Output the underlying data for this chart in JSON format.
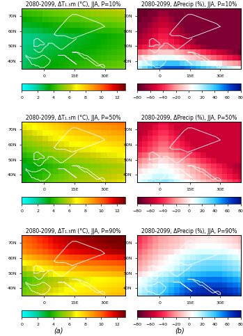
{
  "titles": [
    [
      "2080-2099, ΔT₁.₅m (°C), JJA, P=10%",
      "2080-2099, ΔPrecip (%), JJA, P=10%"
    ],
    [
      "2080-2099, ΔT₁.₅m (°C), JJA, P=50%",
      "2080-2099, ΔPrecip (%), JJA, P=50%"
    ],
    [
      "2080-2099, ΔT₁.₅m (°C), JJA, P=90%",
      "2080-2099, ΔPrecip (%), JJA, P=90%"
    ]
  ],
  "temp_cmap_colors": [
    "#00ffff",
    "#00eedd",
    "#00ddbb",
    "#00cc88",
    "#00bb44",
    "#00aa00",
    "#33bb00",
    "#66cc00",
    "#99cc00",
    "#cccc00",
    "#ffff00",
    "#ffdd00",
    "#ffbb00",
    "#ff9900",
    "#ff7700",
    "#ff5500",
    "#ff2200",
    "#dd0000",
    "#aa0000",
    "#770000"
  ],
  "precip_cmap_colors": [
    "#550022",
    "#770033",
    "#aa0033",
    "#cc0033",
    "#ee1144",
    "#ff3355",
    "#ff6677",
    "#ff9999",
    "#ffbbbb",
    "#ffdddd",
    "#ffffff",
    "#ddffff",
    "#aaeeff",
    "#77ddff",
    "#44ccff",
    "#11aaff",
    "#0077ee",
    "#0044cc",
    "#0022aa",
    "#001188"
  ],
  "temp_clim": [
    0,
    13
  ],
  "precip_clim": [
    -80,
    80
  ],
  "temp_ticks": [
    0,
    2,
    4,
    6,
    8,
    10,
    12
  ],
  "precip_ticks": [
    -80,
    -60,
    -40,
    -20,
    0,
    20,
    40,
    60,
    80
  ],
  "lon_ticks": [
    0,
    15,
    30
  ],
  "lon_labels": [
    "0",
    "15E",
    "30E"
  ],
  "lat_ticks": [
    40,
    50,
    60,
    70
  ],
  "lat_labels": [
    "40N",
    "50N",
    "60N",
    "70N"
  ],
  "lon_range": [
    -11,
    40
  ],
  "lat_range": [
    35,
    75
  ],
  "panel_labels": [
    "(a)",
    "(b)"
  ],
  "background_color": "#ffffff",
  "title_fontsize": 5.5,
  "tick_fontsize": 4.5,
  "colorbar_fontsize": 4.5,
  "panel_label_fontsize": 7,
  "temp_data_10": [
    [
      2.5,
      2.8,
      3.0,
      3.2,
      3.4,
      3.5,
      3.6,
      3.7,
      3.8,
      4.0,
      4.1,
      4.2,
      4.3,
      4.4,
      4.5,
      4.6,
      4.7,
      4.8,
      4.9,
      5.0
    ],
    [
      2.4,
      2.7,
      2.9,
      3.1,
      3.3,
      3.4,
      3.5,
      3.6,
      3.7,
      3.8,
      3.9,
      4.0,
      4.1,
      4.2,
      4.3,
      4.4,
      4.5,
      4.6,
      4.7,
      4.8
    ],
    [
      2.3,
      2.5,
      2.7,
      2.9,
      3.0,
      3.1,
      3.2,
      3.3,
      3.4,
      3.5,
      3.6,
      3.7,
      3.8,
      3.9,
      4.0,
      4.1,
      4.2,
      4.3,
      4.4,
      4.5
    ],
    [
      2.2,
      2.4,
      2.5,
      2.7,
      2.8,
      2.9,
      3.0,
      3.1,
      3.2,
      3.3,
      3.4,
      3.5,
      3.6,
      3.7,
      3.8,
      3.9,
      4.0,
      4.1,
      4.2,
      4.3
    ],
    [
      2.1,
      2.3,
      2.4,
      2.5,
      2.6,
      2.7,
      2.8,
      2.9,
      3.0,
      3.1,
      3.2,
      3.3,
      3.4,
      3.5,
      3.6,
      3.7,
      3.8,
      3.9,
      4.0,
      4.1
    ],
    [
      2.0,
      2.1,
      2.2,
      2.4,
      2.5,
      2.6,
      2.7,
      2.8,
      2.9,
      3.0,
      3.1,
      3.2,
      3.3,
      3.4,
      3.5,
      3.6,
      3.7,
      3.8,
      3.9,
      4.0
    ],
    [
      2.0,
      2.1,
      2.2,
      2.3,
      2.4,
      2.5,
      2.6,
      2.7,
      2.8,
      2.9,
      3.0,
      3.1,
      3.2,
      3.3,
      3.4,
      3.5,
      3.6,
      3.7,
      3.8,
      3.9
    ],
    [
      2.5,
      2.6,
      2.7,
      2.8,
      3.0,
      3.1,
      3.2,
      3.3,
      3.4,
      3.5,
      3.5,
      3.6,
      3.7,
      3.8,
      3.9,
      4.0,
      4.0,
      4.1,
      4.2,
      4.3
    ],
    [
      3.0,
      3.1,
      3.2,
      3.3,
      3.5,
      3.6,
      3.7,
      3.8,
      3.9,
      4.0,
      4.0,
      4.1,
      4.2,
      4.3,
      4.4,
      4.5,
      4.5,
      4.6,
      4.7,
      4.8
    ],
    [
      3.5,
      3.6,
      3.7,
      3.8,
      4.0,
      4.1,
      4.2,
      4.3,
      4.4,
      4.5,
      4.5,
      4.6,
      4.7,
      4.8,
      4.9,
      5.0,
      5.0,
      5.1,
      5.2,
      5.3
    ],
    [
      4.0,
      4.1,
      4.2,
      4.3,
      4.5,
      4.6,
      4.7,
      4.8,
      4.9,
      5.0,
      5.0,
      5.1,
      5.2,
      5.3,
      5.4,
      5.5,
      5.5,
      5.6,
      5.7,
      5.8
    ],
    [
      4.5,
      4.6,
      4.7,
      4.8,
      5.0,
      5.1,
      5.2,
      5.3,
      5.4,
      5.5,
      5.5,
      5.6,
      5.7,
      5.8,
      5.9,
      6.0,
      6.0,
      6.1,
      6.2,
      6.3
    ]
  ],
  "temp_data_50": [
    [
      3.5,
      3.8,
      4.0,
      4.2,
      4.5,
      4.7,
      4.9,
      5.1,
      5.3,
      5.5,
      5.6,
      5.7,
      5.8,
      5.9,
      6.0,
      6.1,
      6.2,
      6.3,
      6.4,
      6.5
    ],
    [
      3.4,
      3.6,
      3.8,
      4.0,
      4.3,
      4.5,
      4.7,
      4.9,
      5.1,
      5.3,
      5.4,
      5.5,
      5.6,
      5.7,
      5.8,
      5.9,
      6.0,
      6.1,
      6.2,
      6.3
    ],
    [
      3.2,
      3.4,
      3.6,
      3.8,
      4.0,
      4.2,
      4.4,
      4.6,
      4.8,
      5.0,
      5.1,
      5.2,
      5.3,
      5.4,
      5.5,
      5.6,
      5.7,
      5.8,
      5.9,
      6.0
    ],
    [
      3.0,
      3.2,
      3.4,
      3.6,
      3.8,
      4.0,
      4.2,
      4.4,
      4.6,
      4.8,
      4.9,
      5.0,
      5.1,
      5.2,
      5.3,
      5.4,
      5.5,
      5.6,
      5.7,
      5.8
    ],
    [
      3.5,
      3.7,
      3.9,
      4.1,
      4.3,
      4.5,
      4.7,
      4.9,
      5.1,
      5.3,
      5.4,
      5.5,
      5.6,
      5.7,
      5.8,
      5.9,
      6.0,
      6.1,
      6.2,
      6.3
    ],
    [
      4.0,
      4.2,
      4.4,
      4.6,
      4.8,
      5.0,
      5.2,
      5.4,
      5.6,
      5.8,
      5.9,
      6.0,
      6.1,
      6.2,
      6.3,
      6.4,
      6.5,
      6.6,
      6.7,
      6.8
    ],
    [
      4.5,
      4.7,
      4.9,
      5.1,
      5.3,
      5.5,
      5.7,
      5.9,
      6.1,
      6.3,
      6.4,
      6.5,
      6.6,
      6.7,
      6.8,
      6.9,
      7.0,
      7.1,
      7.2,
      7.3
    ],
    [
      5.0,
      5.2,
      5.4,
      5.6,
      5.8,
      6.0,
      6.2,
      6.4,
      6.6,
      6.8,
      6.9,
      7.0,
      7.1,
      7.2,
      7.3,
      7.4,
      7.5,
      7.6,
      7.7,
      7.8
    ],
    [
      5.5,
      5.7,
      5.9,
      6.1,
      6.3,
      6.5,
      6.7,
      6.9,
      7.1,
      7.3,
      7.4,
      7.5,
      7.6,
      7.7,
      7.8,
      7.9,
      8.0,
      8.1,
      8.2,
      8.3
    ],
    [
      6.0,
      6.2,
      6.4,
      6.6,
      6.8,
      7.0,
      7.2,
      7.4,
      7.6,
      7.8,
      7.9,
      8.0,
      8.1,
      8.2,
      8.3,
      8.4,
      8.5,
      8.6,
      8.7,
      8.8
    ],
    [
      6.5,
      6.7,
      6.9,
      7.1,
      7.3,
      7.5,
      7.7,
      7.9,
      8.1,
      8.3,
      8.4,
      8.5,
      8.6,
      8.7,
      8.8,
      8.9,
      9.0,
      9.1,
      9.2,
      9.3
    ],
    [
      7.0,
      7.2,
      7.4,
      7.6,
      7.8,
      8.0,
      8.2,
      8.4,
      8.6,
      8.8,
      8.9,
      9.0,
      9.1,
      9.2,
      9.3,
      9.4,
      9.5,
      9.6,
      9.7,
      9.8
    ]
  ],
  "temp_data_90": [
    [
      5.0,
      5.3,
      5.6,
      6.0,
      6.3,
      6.5,
      6.7,
      6.9,
      7.1,
      7.3,
      7.4,
      7.5,
      7.6,
      7.7,
      7.8,
      7.9,
      8.0,
      8.1,
      8.2,
      8.3
    ],
    [
      4.8,
      5.1,
      5.4,
      5.7,
      6.0,
      6.2,
      6.4,
      6.6,
      6.8,
      7.0,
      7.1,
      7.2,
      7.3,
      7.4,
      7.5,
      7.6,
      7.7,
      7.8,
      7.9,
      8.0
    ],
    [
      4.5,
      4.8,
      5.1,
      5.4,
      5.7,
      5.9,
      6.1,
      6.3,
      6.5,
      6.7,
      6.8,
      6.9,
      7.0,
      7.1,
      7.2,
      7.3,
      7.4,
      7.5,
      7.6,
      7.7
    ],
    [
      4.2,
      4.5,
      4.8,
      5.1,
      5.4,
      5.6,
      5.8,
      6.0,
      6.2,
      6.4,
      6.5,
      6.6,
      6.7,
      6.8,
      6.9,
      7.0,
      7.1,
      7.2,
      7.3,
      7.4
    ],
    [
      5.0,
      5.3,
      5.6,
      5.9,
      6.2,
      6.5,
      6.8,
      7.0,
      7.2,
      7.4,
      7.5,
      7.6,
      7.7,
      7.8,
      7.9,
      8.0,
      8.1,
      8.2,
      8.3,
      8.4
    ],
    [
      6.0,
      6.3,
      6.6,
      6.9,
      7.2,
      7.5,
      7.8,
      8.0,
      8.2,
      8.4,
      8.5,
      8.6,
      8.7,
      8.8,
      8.9,
      9.0,
      9.1,
      9.2,
      9.3,
      9.4
    ],
    [
      7.0,
      7.3,
      7.6,
      7.9,
      8.2,
      8.5,
      8.8,
      9.0,
      9.2,
      9.4,
      9.5,
      9.6,
      9.7,
      9.8,
      9.9,
      10.0,
      10.1,
      10.2,
      10.3,
      10.4
    ],
    [
      8.0,
      8.3,
      8.6,
      8.9,
      9.2,
      9.5,
      9.8,
      10.0,
      10.2,
      10.4,
      10.5,
      10.6,
      10.7,
      10.8,
      10.9,
      11.0,
      11.1,
      11.2,
      11.3,
      11.4
    ],
    [
      9.0,
      9.3,
      9.6,
      9.9,
      10.2,
      10.5,
      10.8,
      11.0,
      11.2,
      11.4,
      11.5,
      11.6,
      11.7,
      11.8,
      11.9,
      12.0,
      12.1,
      12.2,
      12.3,
      12.4
    ],
    [
      9.5,
      9.8,
      10.1,
      10.4,
      10.7,
      11.0,
      11.3,
      11.5,
      11.7,
      11.9,
      12.0,
      12.1,
      12.2,
      12.3,
      12.4,
      12.5,
      12.6,
      12.7,
      12.8,
      12.9
    ],
    [
      9.8,
      10.1,
      10.4,
      10.7,
      11.0,
      11.3,
      11.6,
      11.8,
      12.0,
      12.2,
      12.3,
      12.4,
      12.5,
      12.6,
      12.7,
      12.8,
      12.9,
      13.0,
      13.0,
      13.0
    ],
    [
      10.0,
      10.3,
      10.6,
      10.9,
      11.2,
      11.5,
      11.8,
      12.0,
      12.2,
      12.4,
      12.5,
      12.6,
      12.7,
      12.8,
      12.9,
      13.0,
      13.0,
      13.0,
      13.0,
      13.0
    ]
  ],
  "precip_data_10": [
    [
      20,
      30,
      40,
      50,
      55,
      60,
      60,
      60,
      60,
      55,
      50,
      45,
      40,
      35,
      30,
      25,
      20,
      15,
      10,
      5
    ],
    [
      10,
      15,
      20,
      30,
      35,
      40,
      40,
      40,
      35,
      30,
      25,
      20,
      15,
      10,
      5,
      0,
      -10,
      -15,
      -20,
      -25
    ],
    [
      -10,
      -5,
      0,
      5,
      10,
      10,
      10,
      5,
      0,
      -5,
      -10,
      -15,
      -20,
      -25,
      -30,
      -35,
      -40,
      -45,
      -50,
      -55
    ],
    [
      -30,
      -25,
      -20,
      -15,
      -10,
      -10,
      -10,
      -15,
      -20,
      -25,
      -30,
      -35,
      -40,
      -45,
      -50,
      -55,
      -60,
      -65,
      -70,
      -75
    ],
    [
      -50,
      -45,
      -40,
      -35,
      -30,
      -30,
      -35,
      -40,
      -45,
      -50,
      -55,
      -60,
      -65,
      -70,
      -70,
      -70,
      -70,
      -70,
      -70,
      -70
    ],
    [
      -60,
      -55,
      -50,
      -45,
      -40,
      -40,
      -45,
      -50,
      -55,
      -60,
      -65,
      -70,
      -70,
      -70,
      -70,
      -70,
      -70,
      -70,
      -70,
      -70
    ],
    [
      -65,
      -60,
      -55,
      -50,
      -45,
      -45,
      -50,
      -55,
      -60,
      -65,
      -70,
      -70,
      -70,
      -70,
      -70,
      -70,
      -70,
      -70,
      -70,
      -70
    ],
    [
      -70,
      -65,
      -60,
      -55,
      -50,
      -50,
      -55,
      -60,
      -65,
      -70,
      -70,
      -70,
      -70,
      -70,
      -70,
      -70,
      -70,
      -70,
      -70,
      -70
    ],
    [
      -70,
      -70,
      -65,
      -60,
      -55,
      -55,
      -60,
      -65,
      -70,
      -70,
      -70,
      -70,
      -70,
      -70,
      -70,
      -70,
      -70,
      -70,
      -70,
      -70
    ],
    [
      -75,
      -70,
      -70,
      -65,
      -60,
      -60,
      -65,
      -70,
      -70,
      -70,
      -70,
      -70,
      -70,
      -70,
      -70,
      -70,
      -70,
      -70,
      -70,
      -70
    ],
    [
      -75,
      -75,
      -70,
      -70,
      -65,
      -65,
      -70,
      -70,
      -70,
      -70,
      -70,
      -70,
      -70,
      -70,
      -70,
      -70,
      -70,
      -70,
      -70,
      -70
    ],
    [
      -75,
      -75,
      -75,
      -70,
      -70,
      -70,
      -70,
      -70,
      -70,
      -70,
      -70,
      -70,
      -70,
      -70,
      -70,
      -70,
      -70,
      -70,
      -70,
      -70
    ]
  ],
  "precip_data_50": [
    [
      10,
      15,
      20,
      25,
      25,
      25,
      20,
      15,
      10,
      5,
      0,
      -5,
      -10,
      -15,
      -20,
      -25,
      -30,
      -35,
      -40,
      -45
    ],
    [
      5,
      8,
      10,
      15,
      15,
      15,
      10,
      5,
      0,
      -5,
      -10,
      -15,
      -20,
      -25,
      -30,
      -35,
      -40,
      -45,
      -50,
      -55
    ],
    [
      -5,
      0,
      5,
      8,
      10,
      8,
      5,
      0,
      -5,
      -10,
      -15,
      -20,
      -25,
      -30,
      -35,
      -40,
      -45,
      -50,
      -55,
      -60
    ],
    [
      -15,
      -10,
      -5,
      0,
      5,
      3,
      0,
      -5,
      -10,
      -15,
      -20,
      -25,
      -30,
      -35,
      -40,
      -45,
      -50,
      -55,
      -60,
      -65
    ],
    [
      -25,
      -20,
      -15,
      -10,
      -5,
      -5,
      -10,
      -15,
      -20,
      -25,
      -30,
      -35,
      -40,
      -45,
      -50,
      -55,
      -55,
      -55,
      -55,
      -55
    ],
    [
      -35,
      -30,
      -25,
      -20,
      -15,
      -15,
      -20,
      -25,
      -30,
      -35,
      -40,
      -45,
      -50,
      -55,
      -55,
      -55,
      -55,
      -55,
      -55,
      -55
    ],
    [
      -45,
      -40,
      -35,
      -30,
      -25,
      -25,
      -30,
      -35,
      -40,
      -45,
      -50,
      -55,
      -55,
      -55,
      -55,
      -55,
      -55,
      -55,
      -55,
      -55
    ],
    [
      -50,
      -45,
      -40,
      -35,
      -30,
      -30,
      -35,
      -40,
      -45,
      -50,
      -55,
      -55,
      -55,
      -55,
      -55,
      -55,
      -55,
      -55,
      -55,
      -55
    ],
    [
      -55,
      -50,
      -45,
      -40,
      -35,
      -35,
      -40,
      -45,
      -50,
      -55,
      -55,
      -55,
      -55,
      -55,
      -55,
      -55,
      -55,
      -55,
      -55,
      -55
    ],
    [
      -60,
      -55,
      -50,
      -45,
      -40,
      -40,
      -45,
      -50,
      -55,
      -55,
      -55,
      -55,
      -55,
      -55,
      -55,
      -55,
      -55,
      -55,
      -55,
      -55
    ],
    [
      -60,
      -58,
      -55,
      -50,
      -45,
      -45,
      -50,
      -55,
      -55,
      -55,
      -55,
      -55,
      -55,
      -55,
      -55,
      -55,
      -55,
      -55,
      -55,
      -55
    ],
    [
      -60,
      -60,
      -58,
      -55,
      -50,
      -50,
      -55,
      -55,
      -55,
      -55,
      -55,
      -55,
      -55,
      -55,
      -55,
      -55,
      -55,
      -55,
      -55,
      -55
    ]
  ],
  "precip_data_90": [
    [
      20,
      25,
      30,
      35,
      40,
      45,
      50,
      55,
      60,
      65,
      70,
      72,
      74,
      75,
      75,
      75,
      73,
      70,
      67,
      63
    ],
    [
      15,
      20,
      25,
      30,
      35,
      40,
      45,
      50,
      55,
      60,
      65,
      67,
      69,
      70,
      70,
      70,
      68,
      65,
      62,
      58
    ],
    [
      10,
      15,
      20,
      25,
      30,
      35,
      40,
      45,
      50,
      55,
      58,
      60,
      62,
      63,
      63,
      63,
      61,
      58,
      55,
      51
    ],
    [
      5,
      10,
      15,
      20,
      25,
      28,
      32,
      37,
      42,
      47,
      50,
      52,
      54,
      55,
      55,
      55,
      53,
      50,
      47,
      43
    ],
    [
      -5,
      0,
      5,
      10,
      15,
      18,
      22,
      27,
      32,
      37,
      40,
      42,
      44,
      45,
      45,
      45,
      43,
      40,
      37,
      33
    ],
    [
      -15,
      -10,
      -5,
      0,
      5,
      8,
      12,
      17,
      22,
      27,
      30,
      32,
      34,
      35,
      35,
      35,
      33,
      30,
      27,
      23
    ],
    [
      -20,
      -15,
      -10,
      -5,
      0,
      3,
      7,
      12,
      17,
      22,
      25,
      27,
      29,
      30,
      30,
      30,
      28,
      25,
      22,
      18
    ],
    [
      -25,
      -20,
      -15,
      -10,
      -5,
      0,
      5,
      8,
      12,
      16,
      18,
      20,
      22,
      22,
      22,
      22,
      20,
      17,
      14,
      10
    ],
    [
      -30,
      -25,
      -20,
      -15,
      -10,
      -8,
      -5,
      0,
      5,
      8,
      10,
      12,
      13,
      13,
      13,
      13,
      11,
      8,
      5,
      1
    ],
    [
      -35,
      -30,
      -25,
      -20,
      -15,
      -13,
      -10,
      -8,
      -5,
      0,
      2,
      4,
      5,
      5,
      5,
      4,
      2,
      0,
      -3,
      -7
    ],
    [
      -38,
      -33,
      -28,
      -23,
      -18,
      -16,
      -13,
      -11,
      -8,
      -5,
      -3,
      -1,
      0,
      0,
      0,
      -1,
      -3,
      -5,
      -8,
      -12
    ],
    [
      -40,
      -35,
      -30,
      -25,
      -20,
      -18,
      -15,
      -13,
      -10,
      -8,
      -6,
      -4,
      -3,
      -3,
      -3,
      -4,
      -6,
      -8,
      -11,
      -15
    ]
  ]
}
